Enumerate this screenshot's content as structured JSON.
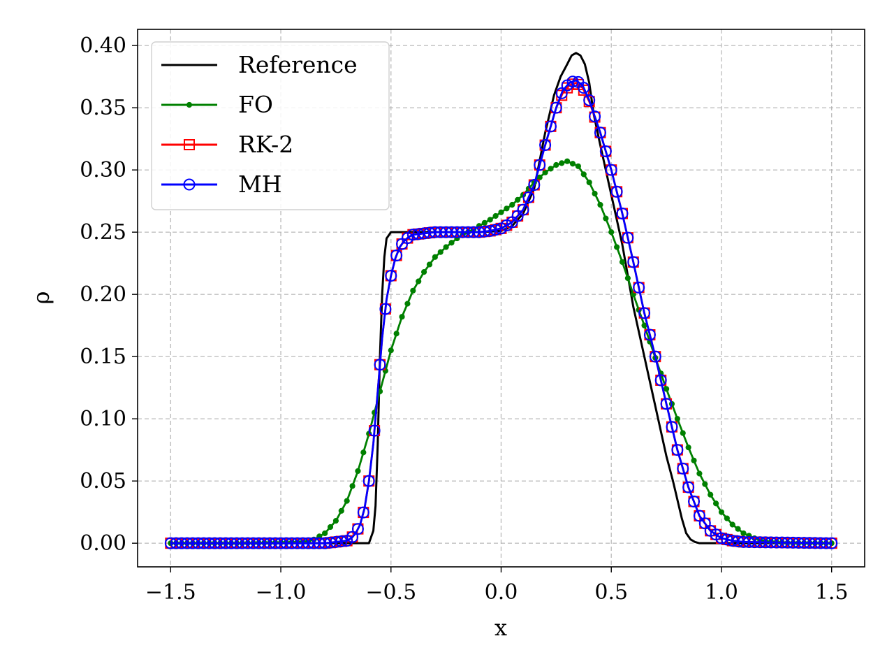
{
  "chart_data": {
    "type": "line",
    "xlabel": "x",
    "ylabel": "ρ",
    "xlim": [
      -1.65,
      1.65
    ],
    "ylim": [
      -0.019,
      0.413
    ],
    "xticks": [
      -1.5,
      -1.0,
      -0.5,
      0.0,
      0.5,
      1.0,
      1.5
    ],
    "xtick_labels": [
      "−1.5",
      "−1.0",
      "−0.5",
      "0.0",
      "0.5",
      "1.0",
      "1.5"
    ],
    "yticks": [
      0.0,
      0.05,
      0.1,
      0.15,
      0.2,
      0.25,
      0.3,
      0.35,
      0.4
    ],
    "ytick_labels": [
      "0.00",
      "0.05",
      "0.10",
      "0.15",
      "0.20",
      "0.25",
      "0.30",
      "0.35",
      "0.40"
    ],
    "grid": true,
    "legend_position": "top-left",
    "series": [
      {
        "name": "Reference",
        "color": "#000000",
        "marker": "none",
        "x": [
          -1.5,
          -0.65,
          -0.6,
          -0.58,
          -0.57,
          -0.56,
          -0.55,
          -0.54,
          -0.53,
          -0.52,
          -0.5,
          -0.48,
          -0.45,
          -0.4,
          -0.3,
          -0.2,
          -0.1,
          0.0,
          0.05,
          0.1,
          0.15,
          0.2,
          0.24,
          0.27,
          0.3,
          0.32,
          0.34,
          0.36,
          0.38,
          0.4,
          0.42,
          0.45,
          0.5,
          0.55,
          0.6,
          0.65,
          0.7,
          0.75,
          0.78,
          0.8,
          0.82,
          0.84,
          0.86,
          0.88,
          0.9,
          1.0,
          1.5
        ],
        "y": [
          0.0,
          0.0,
          0.0,
          0.01,
          0.03,
          0.08,
          0.15,
          0.2,
          0.23,
          0.245,
          0.25,
          0.25,
          0.25,
          0.25,
          0.25,
          0.25,
          0.25,
          0.251,
          0.255,
          0.265,
          0.285,
          0.33,
          0.36,
          0.375,
          0.385,
          0.392,
          0.394,
          0.392,
          0.385,
          0.37,
          0.345,
          0.32,
          0.28,
          0.24,
          0.19,
          0.15,
          0.11,
          0.07,
          0.05,
          0.035,
          0.02,
          0.008,
          0.003,
          0.001,
          0.0,
          0.0,
          0.0
        ]
      },
      {
        "name": "FO",
        "color": "#008000",
        "marker": "dot",
        "x": [
          -1.5,
          -1.2,
          -1.0,
          -0.9,
          -0.85,
          -0.8,
          -0.75,
          -0.7,
          -0.65,
          -0.6,
          -0.55,
          -0.5,
          -0.45,
          -0.4,
          -0.35,
          -0.3,
          -0.25,
          -0.2,
          -0.15,
          -0.1,
          -0.05,
          0.0,
          0.05,
          0.1,
          0.15,
          0.2,
          0.25,
          0.3,
          0.35,
          0.4,
          0.45,
          0.5,
          0.55,
          0.6,
          0.65,
          0.7,
          0.75,
          0.8,
          0.85,
          0.9,
          0.95,
          1.0,
          1.05,
          1.1,
          1.15,
          1.2,
          1.3,
          1.5
        ],
        "y": [
          0.0,
          0.0,
          0.0005,
          0.001,
          0.003,
          0.008,
          0.018,
          0.034,
          0.058,
          0.088,
          0.122,
          0.155,
          0.182,
          0.203,
          0.218,
          0.23,
          0.238,
          0.245,
          0.25,
          0.255,
          0.26,
          0.266,
          0.272,
          0.28,
          0.29,
          0.298,
          0.304,
          0.307,
          0.303,
          0.29,
          0.272,
          0.25,
          0.226,
          0.2,
          0.175,
          0.149,
          0.124,
          0.1,
          0.077,
          0.056,
          0.039,
          0.025,
          0.015,
          0.008,
          0.004,
          0.0015,
          0.0003,
          0.0
        ]
      },
      {
        "name": "RK-2",
        "color": "#ff0000",
        "marker": "square",
        "x": [
          -1.5,
          -0.8,
          -0.75,
          -0.7,
          -0.68,
          -0.66,
          -0.64,
          -0.62,
          -0.6,
          -0.58,
          -0.56,
          -0.54,
          -0.52,
          -0.5,
          -0.48,
          -0.46,
          -0.44,
          -0.42,
          -0.4,
          -0.35,
          -0.3,
          -0.2,
          -0.1,
          -0.05,
          0.0,
          0.05,
          0.1,
          0.15,
          0.2,
          0.25,
          0.28,
          0.31,
          0.34,
          0.37,
          0.4,
          0.45,
          0.5,
          0.55,
          0.6,
          0.65,
          0.7,
          0.75,
          0.8,
          0.85,
          0.9,
          0.95,
          1.0,
          1.05,
          1.1,
          1.5
        ],
        "y": [
          0.0,
          0.0,
          0.001,
          0.002,
          0.004,
          0.008,
          0.015,
          0.028,
          0.05,
          0.08,
          0.122,
          0.165,
          0.196,
          0.215,
          0.229,
          0.238,
          0.243,
          0.246,
          0.248,
          0.249,
          0.25,
          0.25,
          0.25,
          0.251,
          0.253,
          0.258,
          0.268,
          0.288,
          0.32,
          0.35,
          0.362,
          0.368,
          0.37,
          0.366,
          0.355,
          0.33,
          0.3,
          0.265,
          0.226,
          0.185,
          0.15,
          0.112,
          0.075,
          0.045,
          0.022,
          0.01,
          0.004,
          0.002,
          0.001,
          0.0
        ]
      },
      {
        "name": "MH",
        "color": "#0000ff",
        "marker": "circle",
        "x": [
          -1.5,
          -0.8,
          -0.75,
          -0.7,
          -0.68,
          -0.66,
          -0.64,
          -0.62,
          -0.6,
          -0.58,
          -0.56,
          -0.54,
          -0.52,
          -0.5,
          -0.48,
          -0.46,
          -0.44,
          -0.42,
          -0.4,
          -0.35,
          -0.3,
          -0.2,
          -0.1,
          -0.05,
          0.0,
          0.05,
          0.1,
          0.15,
          0.2,
          0.25,
          0.28,
          0.31,
          0.34,
          0.37,
          0.4,
          0.45,
          0.5,
          0.55,
          0.6,
          0.65,
          0.7,
          0.75,
          0.8,
          0.85,
          0.9,
          0.95,
          1.0,
          1.05,
          1.1,
          1.5
        ],
        "y": [
          0.0,
          0.0,
          0.001,
          0.002,
          0.004,
          0.008,
          0.015,
          0.028,
          0.05,
          0.08,
          0.122,
          0.165,
          0.196,
          0.215,
          0.229,
          0.238,
          0.243,
          0.246,
          0.248,
          0.249,
          0.25,
          0.25,
          0.25,
          0.251,
          0.253,
          0.258,
          0.268,
          0.288,
          0.32,
          0.35,
          0.364,
          0.37,
          0.372,
          0.368,
          0.356,
          0.33,
          0.3,
          0.265,
          0.226,
          0.185,
          0.15,
          0.112,
          0.075,
          0.045,
          0.022,
          0.01,
          0.004,
          0.002,
          0.001,
          0.0
        ]
      }
    ]
  }
}
